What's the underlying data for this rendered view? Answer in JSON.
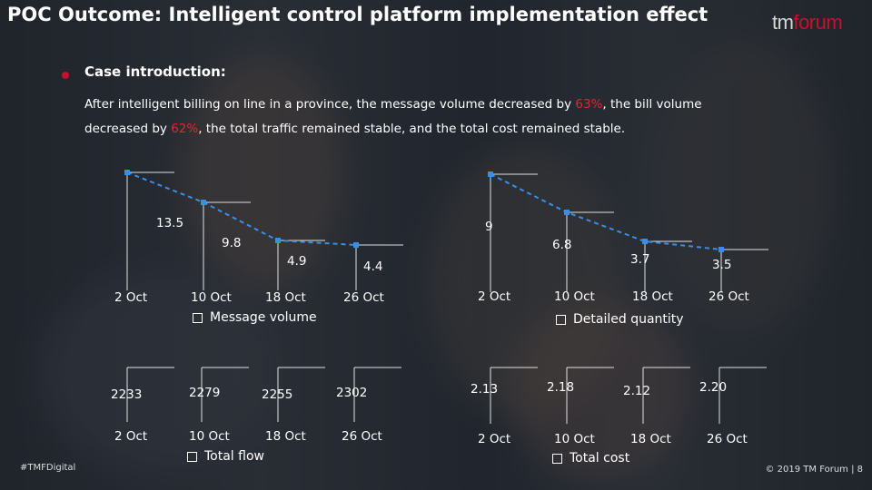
{
  "title": "POC Outcome: Intelligent control platform implementation effect",
  "logo": {
    "tm": "tm",
    "forum": "forum"
  },
  "case": {
    "heading": "Case introduction:",
    "intro_p1": "After intelligent billing on line in a province, the message volume decreased by ",
    "pct1": "63%",
    "intro_p2": ", the bill volume decreased by ",
    "pct2": "62%",
    "intro_p3": ", the total traffic remained stable, and the total cost remained stable."
  },
  "colors": {
    "accent": "#c8102e",
    "line": "#3a8ee6",
    "box": "#e0e0e0"
  },
  "chart_data": [
    {
      "type": "line",
      "categories": [
        "2 Oct",
        "10 Oct",
        "18 Oct",
        "26 Oct"
      ],
      "labels": [
        "13.5",
        "9.8",
        "4.9",
        "4.4"
      ],
      "values": [
        13.5,
        9.8,
        4.9,
        4.4
      ],
      "legend": "Message volume"
    },
    {
      "type": "line",
      "categories": [
        "2 Oct",
        "10 Oct",
        "18 Oct",
        "26 Oct"
      ],
      "labels": [
        "9",
        "6.8",
        "3.7",
        "3.5"
      ],
      "values": [
        9,
        6.8,
        3.7,
        3.5
      ],
      "legend": "Detailed quantity"
    },
    {
      "type": "line",
      "categories": [
        "2 Oct",
        "10 Oct",
        "18 Oct",
        "26 Oct"
      ],
      "labels": [
        "2233",
        "2279",
        "2255",
        "2302"
      ],
      "values": [
        2233,
        2279,
        2255,
        2302
      ],
      "legend": "Total flow"
    },
    {
      "type": "line",
      "categories": [
        "2 Oct",
        "10 Oct",
        "18 Oct",
        "26 Oct"
      ],
      "labels": [
        "2.13",
        "2.18",
        "2.12",
        "2.20"
      ],
      "values": [
        2.13,
        2.18,
        2.12,
        2.2
      ],
      "legend": "Total cost"
    }
  ],
  "footer": {
    "hashtag": "#TMFDigital",
    "copyright": "© 2019 TM Forum | 8"
  }
}
